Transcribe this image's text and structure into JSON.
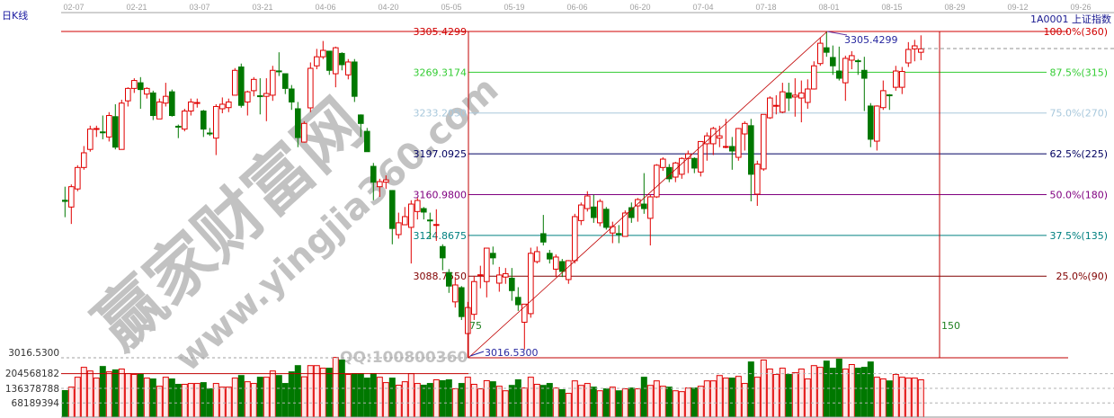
{
  "header": {
    "period_label": "日K线",
    "symbol": "1A0001 上证指数"
  },
  "date_axis": [
    "02-07",
    "02-21",
    "03-07",
    "03-21",
    "04-06",
    "04-20",
    "05-05",
    "05-19",
    "06-06",
    "06-20",
    "07-04",
    "07-18",
    "08-01",
    "08-15",
    "08-29",
    "09-12",
    "09-26"
  ],
  "fib": {
    "high": "3305.4299",
    "low": "3016.5300",
    "time_marks": [
      "75",
      "150"
    ],
    "levels": [
      {
        "price": "3305.4299",
        "pct": "100.0%(360)",
        "value": 3305.4299,
        "color": "#d00000"
      },
      {
        "price": "3269.3174",
        "pct": "87.5%(315)",
        "value": 3269.3174,
        "color": "#33cc33"
      },
      {
        "price": "3233.2050",
        "pct": "75.0%(270)",
        "value": 3233.205,
        "color": "#a8c8dc"
      },
      {
        "price": "3197.0925",
        "pct": "62.5%(225)",
        "value": 3197.0925,
        "color": "#000060"
      },
      {
        "price": "3160.9800",
        "pct": "50.0%(180)",
        "value": 3160.98,
        "color": "#800080"
      },
      {
        "price": "3124.8675",
        "pct": "37.5%(135)",
        "value": 3124.8675,
        "color": "#008080"
      },
      {
        "price": "3088.7550",
        "pct": "25.0%(90)",
        "value": 3088.755,
        "color": "#800000"
      }
    ]
  },
  "price_axis": {
    "low_label": "3016.5300"
  },
  "volume_axis": [
    "204568182",
    "136378788",
    "68189394"
  ],
  "watermark": {
    "cn": "赢家财富网",
    "url": "www.yingjia360.com",
    "qq": "QQ:100800360"
  },
  "colors": {
    "up": "#e00000",
    "up_fill": "#ffe8e8",
    "down": "#007800",
    "grid": "#a0a0a0"
  },
  "chart_data": {
    "type": "candlestick",
    "fields": [
      "open",
      "high",
      "low",
      "close"
    ],
    "candles": [
      [
        3156,
        3168,
        3141,
        3155
      ],
      [
        3150,
        3170,
        3135,
        3168
      ],
      [
        3166,
        3187,
        3164,
        3185
      ],
      [
        3185,
        3204,
        3183,
        3198
      ],
      [
        3201,
        3222,
        3199,
        3219
      ],
      [
        3219,
        3222,
        3212,
        3219.5
      ],
      [
        3216.5,
        3231,
        3210,
        3216
      ],
      [
        3212,
        3234,
        3208,
        3231
      ],
      [
        3230,
        3241,
        3201,
        3203
      ],
      [
        3201,
        3245,
        3201,
        3242
      ],
      [
        3244,
        3256,
        3239,
        3255
      ],
      [
        3255,
        3264,
        3251,
        3262
      ],
      [
        3260,
        3265,
        3237,
        3254
      ],
      [
        3250,
        3256,
        3246,
        3255
      ],
      [
        3251,
        3253,
        3227,
        3231
      ],
      [
        3228,
        3246,
        3228,
        3243
      ],
      [
        3242,
        3260,
        3239,
        3248
      ],
      [
        3252,
        3254,
        3230,
        3231
      ],
      [
        3221.5,
        3223,
        3211,
        3221
      ],
      [
        3219,
        3237,
        3217,
        3235
      ],
      [
        3235,
        3246,
        3231,
        3243
      ],
      [
        3242,
        3246,
        3238,
        3242.5
      ],
      [
        3235,
        3236,
        3212,
        3219
      ],
      [
        3215.5,
        3220,
        3213,
        3215
      ],
      [
        3211,
        3241,
        3196,
        3239
      ],
      [
        3237,
        3247,
        3233,
        3241
      ],
      [
        3238,
        3246,
        3234,
        3243
      ],
      [
        3249,
        3273,
        3249,
        3271
      ],
      [
        3274,
        3277,
        3238,
        3240
      ],
      [
        3243,
        3253,
        3231,
        3252
      ],
      [
        3253,
        3265,
        3248,
        3263
      ],
      [
        3248.5,
        3264,
        3232,
        3248
      ],
      [
        3248,
        3264,
        3226,
        3250.5
      ],
      [
        3249,
        3275,
        3244,
        3271
      ],
      [
        3270.5,
        3287,
        3266,
        3270
      ],
      [
        3268,
        3268,
        3250,
        3255
      ],
      [
        3254.5,
        3258,
        3236,
        3243
      ],
      [
        3237,
        3243,
        3203,
        3211.5
      ],
      [
        3207.5,
        3226,
        3207,
        3224
      ],
      [
        3237.8,
        3278,
        3234,
        3272.8
      ],
      [
        3275,
        3290,
        3272,
        3283
      ],
      [
        3283,
        3297,
        3281,
        3288.7
      ],
      [
        3288,
        3288,
        3267,
        3271
      ],
      [
        3268,
        3292,
        3256,
        3291
      ],
      [
        3286,
        3287,
        3271,
        3276
      ],
      [
        3267,
        3281,
        3263,
        3278.4
      ],
      [
        3278.4,
        3281,
        3243,
        3248
      ],
      [
        3231.5,
        3232,
        3212,
        3224
      ],
      [
        3217,
        3220,
        3199,
        3199
      ],
      [
        3186,
        3189,
        3156,
        3172
      ],
      [
        3168,
        3175,
        3159,
        3172.5
      ],
      [
        3172,
        3178,
        3166,
        3174
      ],
      [
        3164.6,
        3165,
        3117,
        3131
      ],
      [
        3125.6,
        3145,
        3122,
        3136
      ],
      [
        3134.3,
        3150,
        3134,
        3141.5
      ],
      [
        3132,
        3156,
        3100,
        3152.6
      ],
      [
        3146,
        3158,
        3139,
        3155.8
      ],
      [
        3148.6,
        3150,
        3139,
        3145.5
      ],
      [
        3138.5,
        3145,
        3122,
        3138
      ],
      [
        3134,
        3148,
        3120,
        3134.5
      ],
      [
        3115,
        3117,
        3094,
        3105
      ],
      [
        3092,
        3095,
        3074,
        3080
      ],
      [
        3066,
        3088,
        3061,
        3081
      ],
      [
        3078.6,
        3080,
        3050,
        3053
      ],
      [
        3038,
        3066,
        3016.53,
        3061
      ],
      [
        3055,
        3089,
        3050,
        3084
      ],
      [
        3089.5,
        3098,
        3078,
        3090
      ],
      [
        3084,
        3114,
        3070,
        3113.6
      ],
      [
        3109,
        3115,
        3099,
        3105
      ],
      [
        3082.6,
        3097,
        3075,
        3089.8
      ],
      [
        3088,
        3096,
        3082,
        3091
      ],
      [
        3087,
        3096,
        3067,
        3076
      ],
      [
        3070,
        3079,
        3058,
        3063.5
      ],
      [
        3048,
        3064,
        3024,
        3064
      ],
      [
        3055.6,
        3114,
        3052,
        3109
      ],
      [
        3101.7,
        3115,
        3100,
        3110.5
      ],
      [
        3126.4,
        3143,
        3116,
        3119
      ],
      [
        3109,
        3112,
        3100,
        3104
      ],
      [
        3095,
        3108,
        3088,
        3105.7
      ],
      [
        3101.7,
        3104,
        3088,
        3093
      ],
      [
        3085.8,
        3103,
        3082,
        3102.5
      ],
      [
        3102.5,
        3144,
        3100,
        3141.5
      ],
      [
        3138,
        3154,
        3134,
        3151.8
      ],
      [
        3148.6,
        3164,
        3146,
        3159.8
      ],
      [
        3150,
        3161,
        3136,
        3140.7
      ],
      [
        3136,
        3157,
        3133,
        3155
      ],
      [
        3148,
        3150,
        3130,
        3132
      ],
      [
        3127,
        3137,
        3118,
        3132.7
      ],
      [
        3126.5,
        3134,
        3118,
        3126
      ],
      [
        3124,
        3147,
        3124,
        3144.7
      ],
      [
        3149.4,
        3154,
        3136,
        3140.7
      ],
      [
        3151,
        3158,
        3137,
        3156.6
      ],
      [
        3152.6,
        3180,
        3144,
        3148.6
      ],
      [
        3140,
        3161,
        3116,
        3159
      ],
      [
        3159,
        3188,
        3158,
        3187
      ],
      [
        3185,
        3194,
        3182,
        3192.4
      ],
      [
        3185,
        3188,
        3172,
        3175
      ],
      [
        3176.5,
        3190,
        3172,
        3189
      ],
      [
        3179,
        3194,
        3175,
        3193
      ],
      [
        3193,
        3200,
        3180,
        3197
      ],
      [
        3193,
        3194,
        3180,
        3184.5
      ],
      [
        3181,
        3208,
        3177,
        3208
      ],
      [
        3206,
        3216,
        3191,
        3213
      ],
      [
        3206,
        3221,
        3196,
        3219.5
      ],
      [
        3211,
        3222,
        3203,
        3213
      ],
      [
        3203.3,
        3228,
        3202,
        3203.6
      ],
      [
        3203.6,
        3212,
        3183,
        3199.6
      ],
      [
        3194,
        3220,
        3191,
        3219.5
      ],
      [
        3214.7,
        3226,
        3200,
        3224
      ],
      [
        3222,
        3228,
        3155,
        3179
      ],
      [
        3161.4,
        3191,
        3151,
        3188
      ],
      [
        3183.7,
        3232,
        3182,
        3232
      ],
      [
        3229,
        3248,
        3228,
        3246.5
      ],
      [
        3239.5,
        3249,
        3232,
        3240
      ],
      [
        3234,
        3260,
        3233,
        3252
      ],
      [
        3251,
        3260,
        3235,
        3246.5
      ],
      [
        3247.4,
        3264,
        3230,
        3249
      ],
      [
        3246.5,
        3262,
        3225,
        3251
      ],
      [
        3242.6,
        3263,
        3237,
        3254.5
      ],
      [
        3254.5,
        3279,
        3254,
        3275
      ],
      [
        3277,
        3300,
        3275,
        3295
      ],
      [
        3291,
        3305.4299,
        3283,
        3287
      ],
      [
        3282.4,
        3293,
        3267,
        3275
      ],
      [
        3270.4,
        3292,
        3262,
        3264
      ],
      [
        3260,
        3284,
        3244,
        3281.6
      ],
      [
        3280,
        3288,
        3272,
        3284
      ],
      [
        3279.5,
        3281,
        3267,
        3279
      ],
      [
        3271,
        3283,
        3235,
        3264
      ],
      [
        3239.4,
        3242,
        3203,
        3210
      ],
      [
        3208.3,
        3240,
        3200,
        3239.4
      ],
      [
        3238,
        3262,
        3236,
        3253
      ],
      [
        3249.3,
        3250,
        3236,
        3249
      ],
      [
        3256,
        3275,
        3253,
        3270.4
      ],
      [
        3256,
        3274,
        3250,
        3270
      ],
      [
        3277.6,
        3296,
        3274,
        3289.5
      ],
      [
        3290,
        3298,
        3279,
        3292.7
      ],
      [
        3287,
        3302,
        3280,
        3290
      ]
    ],
    "volume": [
      126000000,
      142000000,
      188000000,
      234000000,
      217000000,
      184000000,
      238000000,
      213000000,
      222000000,
      226000000,
      205000000,
      201000000,
      201000000,
      184000000,
      180000000,
      146000000,
      188000000,
      180000000,
      155000000,
      155000000,
      159000000,
      159000000,
      163000000,
      134000000,
      159000000,
      142000000,
      142000000,
      184000000,
      196000000,
      167000000,
      159000000,
      188000000,
      188000000,
      217000000,
      196000000,
      159000000,
      213000000,
      242000000,
      190000000,
      242000000,
      242000000,
      230000000,
      230000000,
      280000000,
      268000000,
      201000000,
      205000000,
      205000000,
      184000000,
      205000000,
      188000000,
      163000000,
      184000000,
      151000000,
      167000000,
      205000000,
      159000000,
      151000000,
      159000000,
      176000000,
      172000000,
      176000000,
      134000000,
      159000000,
      188000000,
      155000000,
      134000000,
      172000000,
      167000000,
      146000000,
      125000000,
      150000000,
      176000000,
      138000000,
      188000000,
      155000000,
      150000000,
      159000000,
      138000000,
      130000000,
      113000000,
      171000000,
      150000000,
      159000000,
      142000000,
      125000000,
      134000000,
      142000000,
      125000000,
      134000000,
      138000000,
      134000000,
      188000000,
      150000000,
      171000000,
      146000000,
      142000000,
      125000000,
      121000000,
      138000000,
      138000000,
      146000000,
      171000000,
      171000000,
      196000000,
      184000000,
      184000000,
      192000000,
      159000000,
      259000000,
      188000000,
      268000000,
      226000000,
      201000000,
      230000000,
      201000000,
      209000000,
      226000000,
      180000000,
      242000000,
      234000000,
      263000000,
      230000000,
      272000000,
      226000000,
      247000000,
      230000000,
      234000000,
      259000000,
      188000000,
      180000000,
      171000000,
      201000000,
      188000000,
      184000000,
      184000000,
      176000000
    ],
    "price_range": [
      3016.53,
      3305.4299
    ],
    "volume_ticks": [
      68189394,
      136378788,
      204568182
    ]
  }
}
